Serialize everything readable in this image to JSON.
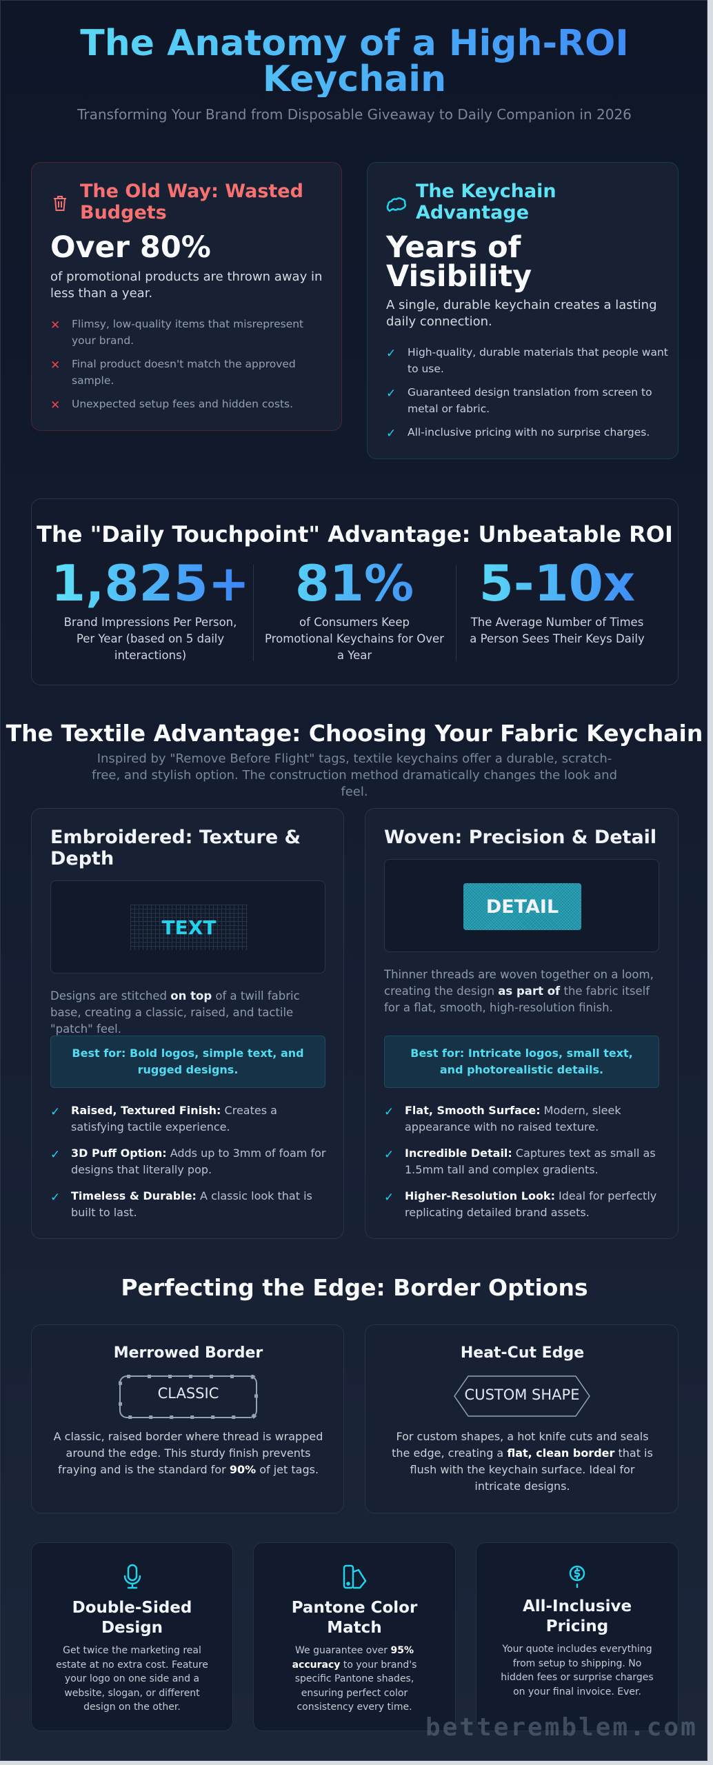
{
  "header": {
    "title": "The Anatomy of a High-ROI Keychain",
    "subtitle": "Transforming Your Brand from Disposable Giveaway to Daily Companion in 2026"
  },
  "old_way": {
    "icon": "trash-icon",
    "heading": "The Old Way: Wasted Budgets",
    "stat": "Over 80%",
    "desc": "of promotional products are thrown away in less than a year.",
    "items": [
      "Flimsy, low-quality items that misrepresent your brand.",
      "Final product doesn't match the approved sample.",
      "Unexpected setup fees and hidden costs."
    ],
    "color": "#f87171"
  },
  "advantage": {
    "icon": "brain-icon",
    "heading": "The Keychain Advantage",
    "stat": "Years of Visibility",
    "desc": "A single, durable keychain creates a lasting daily connection.",
    "items": [
      "High-quality, durable materials that people want to use.",
      "Guaranteed design translation from screen to metal or fabric.",
      "All-inclusive pricing with no surprise charges."
    ],
    "color": "#22d3ee"
  },
  "roi": {
    "heading": "The \"Daily Touchpoint\" Advantage: Unbeatable ROI",
    "stats": [
      {
        "value": "1,825+",
        "label": "Brand Impressions Per Person, Per Year (based on 5 daily interactions)"
      },
      {
        "value": "81%",
        "label": "of Consumers Keep Promotional Keychains for Over a Year"
      },
      {
        "value": "5-10x",
        "label": "The Average Number of Times a Person Sees Their Keys Daily"
      }
    ]
  },
  "textile": {
    "heading": "The Textile Advantage: Choosing Your Fabric Keychain",
    "subtitle": "Inspired by \"Remove Before Flight\" tags, textile keychains offer a durable, scratch-free, and stylish option. The construction method dramatically changes the look and feel.",
    "embroidered": {
      "title": "Embroidered: Texture & Depth",
      "sample": "TEXT",
      "desc_pre": "Designs are stitched ",
      "desc_bold": "on top",
      "desc_post": " of a twill fabric base, creating a classic, raised, and tactile \"patch\" feel.",
      "best": "Best for: Bold logos, simple text, and rugged designs.",
      "items": [
        {
          "b": "Raised, Textured Finish:",
          "t": " Creates a satisfying tactile experience."
        },
        {
          "b": "3D Puff Option:",
          "t": " Adds up to 3mm of foam for designs that literally pop."
        },
        {
          "b": "Timeless & Durable:",
          "t": " A classic look that is built to last."
        }
      ]
    },
    "woven": {
      "title": "Woven: Precision & Detail",
      "sample": "DETAIL",
      "desc_pre": "Thinner threads are woven together on a loom, creating the design ",
      "desc_bold": "as part of",
      "desc_post": " the fabric itself for a flat, smooth, high-resolution finish.",
      "best": "Best for: Intricate logos, small text, and photorealistic details.",
      "items": [
        {
          "b": "Flat, Smooth Surface:",
          "t": " Modern, sleek appearance with no raised texture."
        },
        {
          "b": "Incredible Detail:",
          "t": " Captures text as small as 1.5mm tall and complex gradients."
        },
        {
          "b": "Higher-Resolution Look:",
          "t": " Ideal for perfectly replicating detailed brand assets."
        }
      ]
    }
  },
  "edge": {
    "heading": "Perfecting the Edge: Border Options",
    "merrowed": {
      "title": "Merrowed Border",
      "sample": "CLASSIC",
      "desc_pre": "A classic, raised border where thread is wrapped around the edge. This sturdy finish prevents fraying and is the standard for ",
      "desc_bold": "90%",
      "desc_post": " of jet tags."
    },
    "heatcut": {
      "title": "Heat-Cut Edge",
      "sample": "CUSTOM SHAPE",
      "desc_pre": "For custom shapes, a hot knife cuts and seals the edge, creating a ",
      "desc_bold": "flat, clean border",
      "desc_post": " that is flush with the keychain surface. Ideal for intricate designs."
    }
  },
  "features": [
    {
      "icon": "microphone-icon",
      "title": "Double-Sided Design",
      "desc_pre": "Get twice the marketing real estate at no extra cost. Feature your logo on one side and a website, slogan, or different design on the other.",
      "desc_bold": "",
      "desc_post": ""
    },
    {
      "icon": "swatch-icon",
      "title": "Pantone Color Match",
      "desc_pre": "We guarantee over ",
      "desc_bold": "95% accuracy",
      "desc_post": " to your brand's specific Pantone shades, ensuring perfect color consistency every time."
    },
    {
      "icon": "dollar-pin-icon",
      "title": "All-Inclusive Pricing",
      "desc_pre": "Your quote includes everything from setup to shipping. No hidden fees or surprise charges on your final invoice. Ever.",
      "desc_bold": "",
      "desc_post": ""
    }
  ],
  "watermark": "betteremblem.com"
}
